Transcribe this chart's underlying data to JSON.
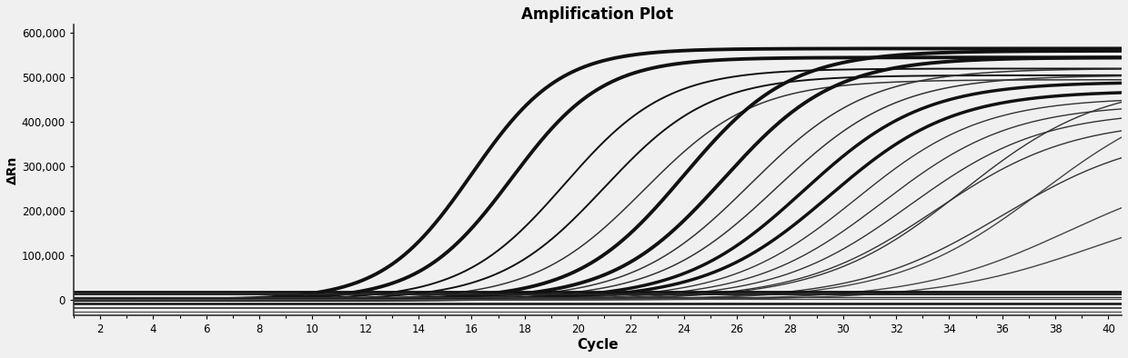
{
  "title": "Amplification Plot",
  "xlabel": "Cycle",
  "ylabel": "ΔRn",
  "xlim": [
    1,
    40.5
  ],
  "ylim": [
    -35000,
    620000
  ],
  "xticks": [
    2,
    4,
    6,
    8,
    10,
    12,
    14,
    16,
    18,
    20,
    22,
    24,
    26,
    28,
    30,
    32,
    34,
    36,
    38,
    40
  ],
  "yticks": [
    0,
    100000,
    200000,
    300000,
    400000,
    500000,
    600000
  ],
  "ytick_labels": [
    "0",
    "100,000",
    "200,000",
    "300,000",
    "400,000",
    "500,000",
    "600,000"
  ],
  "background_color": "#f0f0f0",
  "curves": [
    {
      "ct": 16.0,
      "plateau": 565000,
      "slope": 0.6,
      "lw": 2.8,
      "color": "#111111"
    },
    {
      "ct": 17.5,
      "plateau": 545000,
      "slope": 0.58,
      "lw": 2.8,
      "color": "#111111"
    },
    {
      "ct": 19.5,
      "plateau": 520000,
      "slope": 0.52,
      "lw": 1.4,
      "color": "#111111"
    },
    {
      "ct": 21.0,
      "plateau": 505000,
      "slope": 0.5,
      "lw": 1.4,
      "color": "#111111"
    },
    {
      "ct": 22.5,
      "plateau": 495000,
      "slope": 0.48,
      "lw": 1.1,
      "color": "#333333"
    },
    {
      "ct": 24.0,
      "plateau": 560000,
      "slope": 0.5,
      "lw": 2.8,
      "color": "#111111"
    },
    {
      "ct": 25.5,
      "plateau": 545000,
      "slope": 0.48,
      "lw": 2.8,
      "color": "#111111"
    },
    {
      "ct": 26.5,
      "plateau": 520000,
      "slope": 0.45,
      "lw": 1.1,
      "color": "#333333"
    },
    {
      "ct": 27.5,
      "plateau": 505000,
      "slope": 0.44,
      "lw": 1.1,
      "color": "#333333"
    },
    {
      "ct": 28.5,
      "plateau": 490000,
      "slope": 0.44,
      "lw": 2.5,
      "color": "#111111"
    },
    {
      "ct": 29.5,
      "plateau": 470000,
      "slope": 0.43,
      "lw": 2.5,
      "color": "#111111"
    },
    {
      "ct": 30.5,
      "plateau": 455000,
      "slope": 0.42,
      "lw": 1.0,
      "color": "#333333"
    },
    {
      "ct": 31.5,
      "plateau": 440000,
      "slope": 0.41,
      "lw": 1.0,
      "color": "#333333"
    },
    {
      "ct": 32.5,
      "plateau": 425000,
      "slope": 0.4,
      "lw": 1.0,
      "color": "#333333"
    },
    {
      "ct": 33.5,
      "plateau": 405000,
      "slope": 0.39,
      "lw": 1.0,
      "color": "#333333"
    },
    {
      "ct": 34.5,
      "plateau": 490000,
      "slope": 0.38,
      "lw": 1.0,
      "color": "#333333"
    },
    {
      "ct": 36.0,
      "plateau": 380000,
      "slope": 0.37,
      "lw": 1.0,
      "color": "#333333"
    },
    {
      "ct": 37.5,
      "plateau": 490000,
      "slope": 0.36,
      "lw": 1.0,
      "color": "#444444"
    },
    {
      "ct": 38.5,
      "plateau": 310000,
      "slope": 0.35,
      "lw": 1.0,
      "color": "#444444"
    },
    {
      "ct": 39.5,
      "plateau": 240000,
      "slope": 0.34,
      "lw": 1.0,
      "color": "#444444"
    }
  ],
  "flat_lines": [
    {
      "y": 18000,
      "lw": 2.0,
      "color": "#111111"
    },
    {
      "y": 12000,
      "lw": 1.4,
      "color": "#222222"
    },
    {
      "y": 7000,
      "lw": 1.0,
      "color": "#333333"
    },
    {
      "y": 3000,
      "lw": 0.8,
      "color": "#444444"
    },
    {
      "y": -8000,
      "lw": 1.8,
      "color": "#111111"
    },
    {
      "y": -18000,
      "lw": 1.2,
      "color": "#333333"
    },
    {
      "y": -27000,
      "lw": 1.0,
      "color": "#555555"
    }
  ]
}
